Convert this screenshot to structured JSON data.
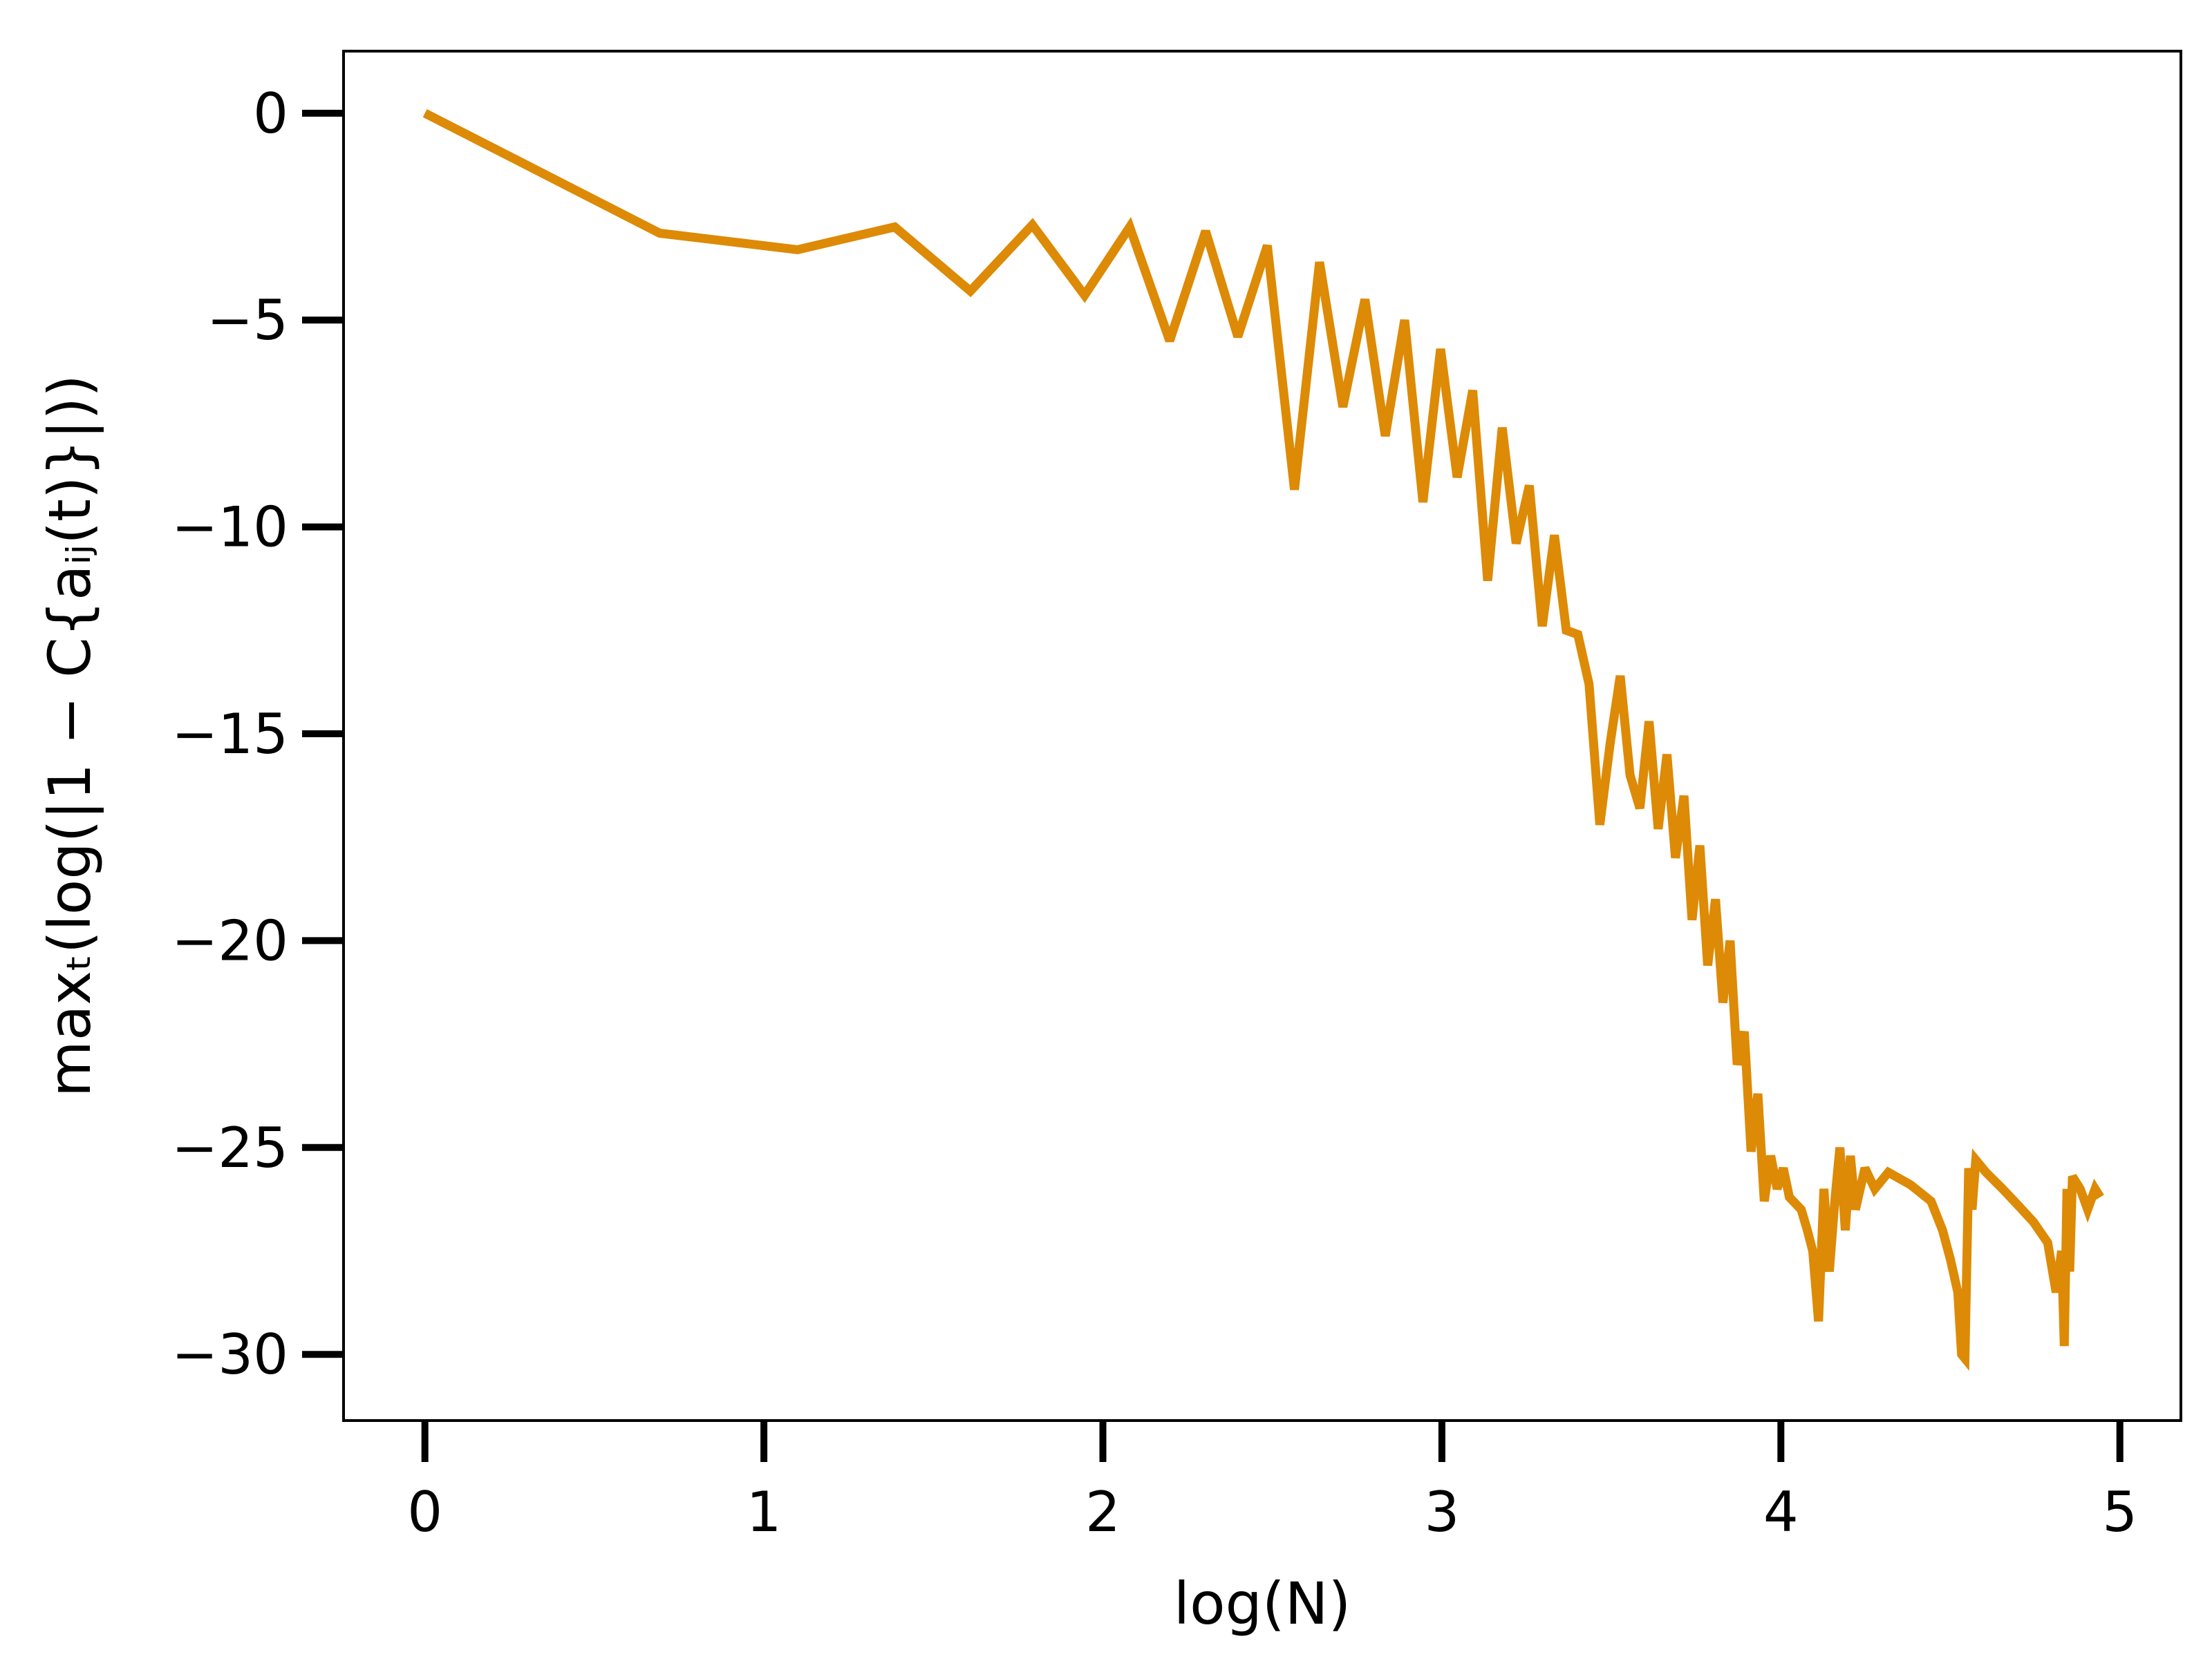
{
  "chart_data": {
    "type": "line",
    "x_label": "log(N)",
    "y_label": "maxₜ(log(|1 − C{aᵢⱼ(t)}|))",
    "xlim": [
      -0.24,
      5.18
    ],
    "ylim": [
      -31.6,
      1.5
    ],
    "xticks": [
      0,
      1,
      2,
      3,
      4,
      5
    ],
    "yticks": [
      0,
      -5,
      -10,
      -15,
      -20,
      -25,
      -30
    ],
    "grid": false,
    "x": [
      0,
      0.693,
      1.099,
      1.386,
      1.609,
      1.792,
      1.946,
      2.079,
      2.197,
      2.303,
      2.398,
      2.485,
      2.565,
      2.639,
      2.708,
      2.773,
      2.833,
      2.89,
      2.944,
      2.996,
      3.045,
      3.091,
      3.135,
      3.178,
      3.219,
      3.258,
      3.296,
      3.332,
      3.367,
      3.401,
      3.434,
      3.466,
      3.497,
      3.526,
      3.555,
      3.584,
      3.611,
      3.638,
      3.664,
      3.689,
      3.714,
      3.738,
      3.761,
      3.784,
      3.807,
      3.829,
      3.85,
      3.871,
      3.892,
      3.912,
      3.932,
      3.951,
      3.97,
      3.989,
      4.007,
      4.025,
      4.06,
      4.078,
      4.094,
      4.111,
      4.127,
      4.143,
      4.159,
      4.174,
      4.19,
      4.205,
      4.22,
      4.248,
      4.277,
      4.317,
      4.382,
      4.443,
      4.477,
      4.5,
      4.522,
      4.533,
      4.543,
      4.554,
      4.564,
      4.575,
      4.605,
      4.654,
      4.7,
      4.745,
      4.787,
      4.812,
      4.828,
      4.836,
      4.844,
      4.852,
      4.86,
      4.883,
      4.905,
      4.927,
      4.942
    ],
    "series": [
      {
        "name": "max",
        "color": "#dd8a06",
        "values": [
          0,
          -2.9,
          -3.3,
          -2.75,
          -4.3,
          -2.7,
          -4.4,
          -2.75,
          -5.5,
          -2.85,
          -5.4,
          -3.2,
          -9.1,
          -3.6,
          -7.1,
          -4.5,
          -7.8,
          -5.0,
          -9.4,
          -5.7,
          -8.8,
          -6.7,
          -11.3,
          -7.6,
          -10.4,
          -9.0,
          -12.4,
          -10.2,
          -12.5,
          -12.6,
          -13.8,
          -17.2,
          -15.2,
          -13.6,
          -16.0,
          -16.8,
          -14.7,
          -17.3,
          -15.5,
          -18.0,
          -16.5,
          -19.5,
          -17.7,
          -20.6,
          -19.0,
          -21.5,
          -20.0,
          -23.0,
          -22.2,
          -25.1,
          -23.7,
          -26.3,
          -25.2,
          -26.0,
          -25.5,
          -26.2,
          -26.5,
          -27.0,
          -27.5,
          -29.2,
          -26.0,
          -28.0,
          -26.3,
          -25.0,
          -27.0,
          -25.2,
          -26.5,
          -25.5,
          -26.0,
          -25.6,
          -25.9,
          -26.3,
          -27.0,
          -27.7,
          -28.5,
          -30.0,
          -30.1,
          -25.5,
          -26.5,
          -25.3,
          -25.6,
          -26.0,
          -26.4,
          -26.8,
          -27.3,
          -28.5,
          -27.5,
          -29.8,
          -26.0,
          -28.0,
          -25.7,
          -26.0,
          -26.5,
          -26.0,
          -26.2
        ]
      }
    ]
  }
}
